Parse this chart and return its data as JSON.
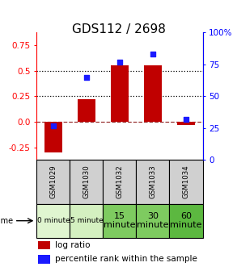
{
  "title": "GDS112 / 2698",
  "samples": [
    "GSM1029",
    "GSM1030",
    "GSM1032",
    "GSM1033",
    "GSM1034"
  ],
  "time_labels": [
    "0 minute",
    "5 minute",
    "15\nminute",
    "30\nminute",
    "60\nminute"
  ],
  "time_colors": [
    "#e0f5d0",
    "#d4f0c0",
    "#7ecb60",
    "#7ecb60",
    "#5cb840"
  ],
  "log_ratio": [
    -0.3,
    0.22,
    0.55,
    0.55,
    -0.03
  ],
  "percentile": [
    27,
    65,
    77,
    83,
    32
  ],
  "bar_color": "#c00000",
  "dot_color": "#1a1aff",
  "ylim_left": [
    -0.375,
    0.875
  ],
  "ylim_right": [
    0,
    100
  ],
  "yticks_left": [
    -0.25,
    0.0,
    0.25,
    0.5,
    0.75
  ],
  "yticks_right": [
    0,
    25,
    50,
    75,
    100
  ],
  "dotted_lines": [
    0.25,
    0.5
  ],
  "zero_line": 0.0,
  "bar_width": 0.55,
  "sample_row_color": "#d0d0d0",
  "background_color": "#ffffff",
  "title_fontsize": 11,
  "tick_fontsize": 7.5,
  "label_fontsize": 7.5
}
